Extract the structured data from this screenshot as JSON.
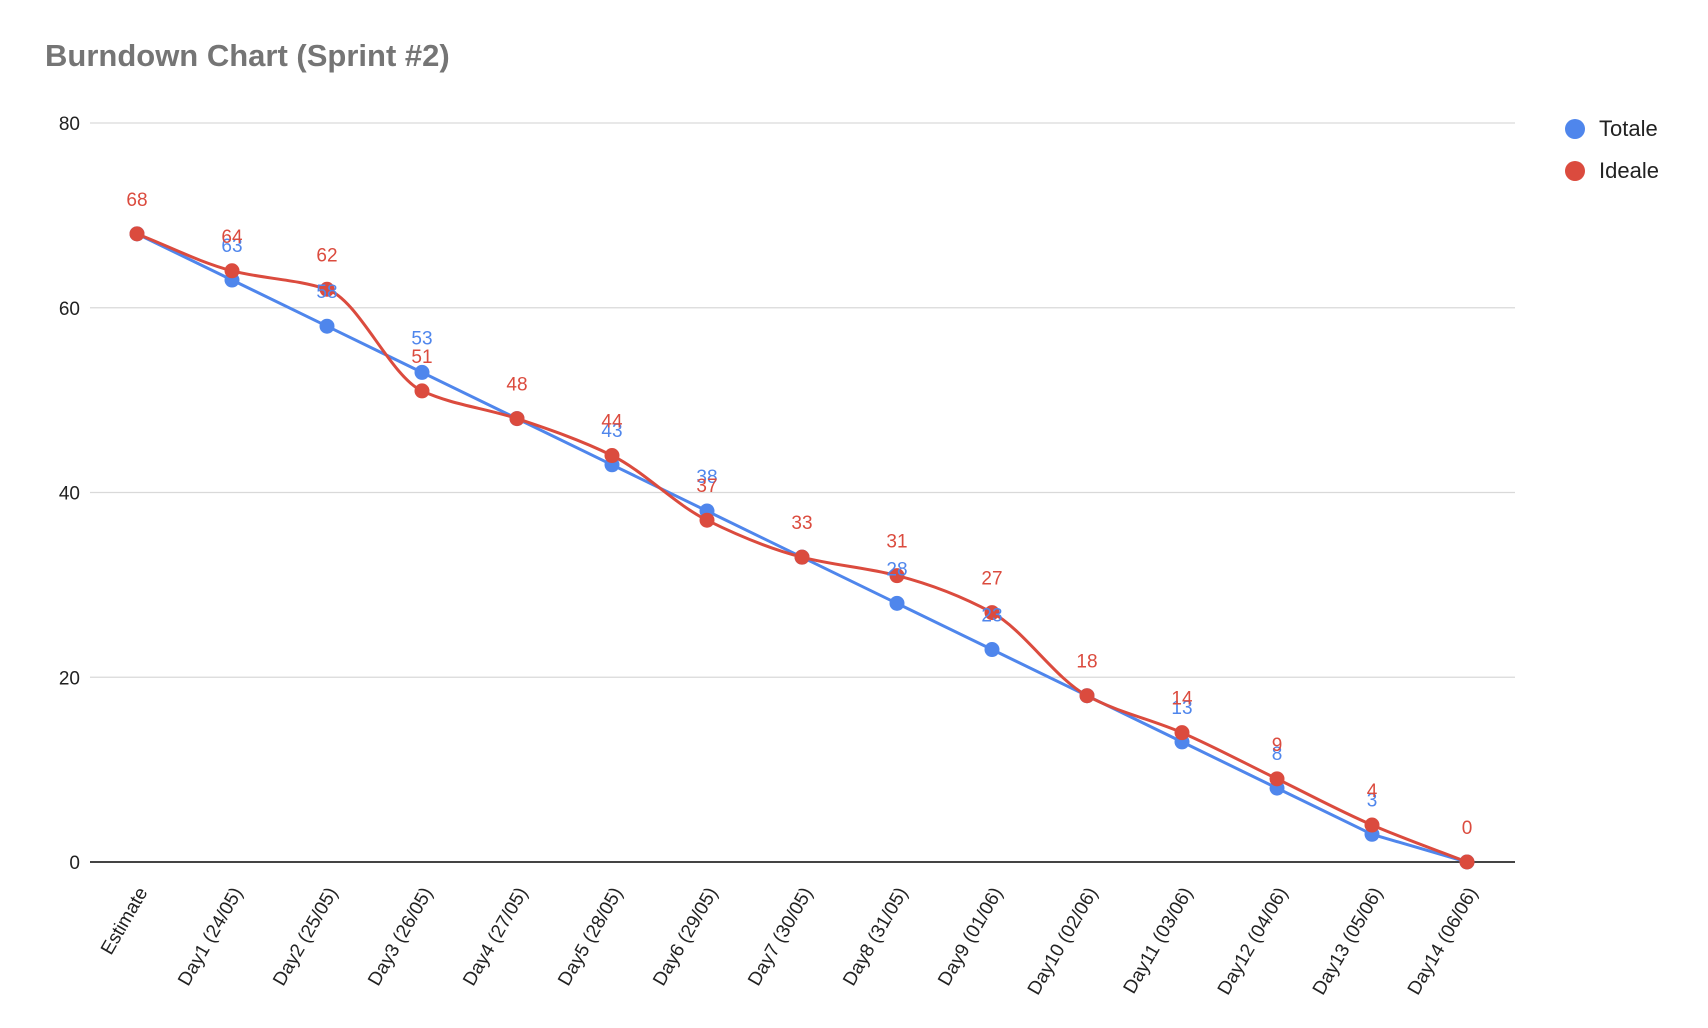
{
  "chart_data": {
    "type": "line",
    "title": "Burndown Chart (Sprint #2)",
    "xlabel": "",
    "ylabel": "",
    "ylim": [
      0,
      80
    ],
    "yticks": [
      0,
      20,
      40,
      60,
      80
    ],
    "grid": true,
    "legend_position": "right",
    "categories": [
      "Estimate",
      "Day1 (24/05)",
      "Day2 (25/05)",
      "Day3 (26/05)",
      "Day4 (27/05)",
      "Day5 (28/05)",
      "Day6 (29/05)",
      "Day7 (30/05)",
      "Day8 (31/05)",
      "Day9 (01/06)",
      "Day10 (02/06)",
      "Day11 (03/06)",
      "Day12 (04/06)",
      "Day13 (05/06)",
      "Day14 (06/06)"
    ],
    "series": [
      {
        "name": "Totale",
        "color": "#4f86ec",
        "smooth": false,
        "values": [
          68,
          63,
          58,
          53,
          48,
          43,
          38,
          33,
          28,
          23,
          18,
          13,
          8,
          3,
          0
        ],
        "labels": [
          "",
          "63",
          "58",
          "53",
          "",
          "43",
          "38",
          "",
          "28",
          "23",
          "",
          "13",
          "8",
          "3",
          ""
        ]
      },
      {
        "name": "Ideale",
        "color": "#db4b3e",
        "smooth": true,
        "values": [
          68,
          64,
          62,
          51,
          48,
          44,
          37,
          33,
          31,
          27,
          18,
          14,
          9,
          4,
          0
        ],
        "labels": [
          "68",
          "64",
          "62",
          "51",
          "48",
          "44",
          "37",
          "33",
          "31",
          "27",
          "18",
          "14",
          "9",
          "4",
          "0"
        ]
      }
    ]
  }
}
